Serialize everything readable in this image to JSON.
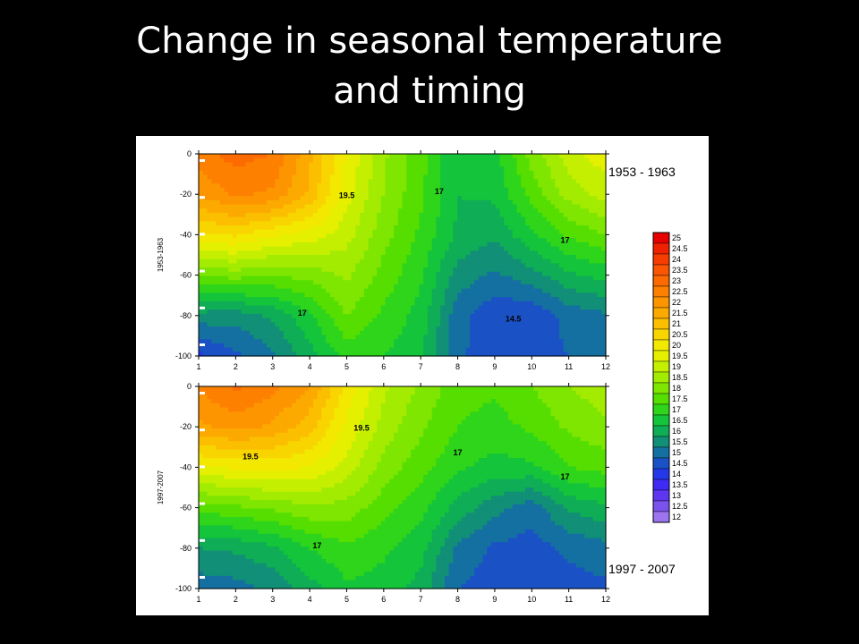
{
  "slide": {
    "title_line1": "Change in seasonal temperature",
    "title_line2": "and timing"
  },
  "chart_data": [
    {
      "type": "heatmap",
      "subtype": "filled-contour",
      "period_label": "1953 - 1963",
      "ylabel": "1953-1963",
      "xlabel": "",
      "x": [
        1,
        2,
        3,
        4,
        5,
        6,
        7,
        8,
        9,
        10,
        11,
        12
      ],
      "y": [
        0,
        -20,
        -40,
        -60,
        -80,
        -100
      ],
      "x_ticks": [
        "1",
        "2",
        "3",
        "4",
        "5",
        "6",
        "7",
        "8",
        "9",
        "10",
        "11",
        "12"
      ],
      "y_ticks": [
        "0",
        "-20",
        "-40",
        "-60",
        "-80",
        "-100"
      ],
      "xlim": [
        1,
        12
      ],
      "ylim": [
        -100,
        0
      ],
      "grid": false,
      "contour_labels": [
        {
          "text": "19.5",
          "x": 5.0,
          "y": -22
        },
        {
          "text": "17",
          "x": 7.5,
          "y": -20
        },
        {
          "text": "17",
          "x": 10.9,
          "y": -44
        },
        {
          "text": "17",
          "x": 3.8,
          "y": -80
        },
        {
          "text": "14.5",
          "x": 9.5,
          "y": -83
        }
      ],
      "z": [
        [
          22.8,
          23.2,
          23.0,
          21.6,
          20.0,
          18.6,
          17.7,
          16.5,
          16.8,
          18.2,
          19.3,
          19.8
        ],
        [
          22.1,
          22.6,
          22.4,
          21.4,
          19.7,
          18.5,
          17.6,
          16.5,
          16.6,
          17.7,
          18.7,
          19.2
        ],
        [
          20.4,
          20.6,
          20.1,
          19.8,
          19.2,
          18.2,
          17.4,
          16.4,
          16.1,
          16.9,
          17.6,
          18.0
        ],
        [
          18.1,
          18.2,
          18.0,
          18.2,
          18.6,
          17.8,
          17.1,
          15.8,
          15.4,
          15.8,
          16.4,
          16.7
        ],
        [
          15.8,
          15.7,
          16.1,
          16.9,
          18.0,
          17.4,
          16.8,
          15.2,
          14.6,
          14.6,
          15.2,
          15.4
        ],
        [
          14.4,
          14.9,
          15.4,
          16.3,
          17.2,
          17.0,
          16.6,
          15.1,
          14.7,
          14.7,
          15.0,
          15.2
        ]
      ]
    },
    {
      "type": "heatmap",
      "subtype": "filled-contour",
      "period_label": "1997 - 2007",
      "ylabel": "1997-2007",
      "xlabel": "",
      "x": [
        1,
        2,
        3,
        4,
        5,
        6,
        7,
        8,
        9,
        10,
        11,
        12
      ],
      "y": [
        0,
        -20,
        -40,
        -60,
        -80,
        -100
      ],
      "x_ticks": [
        "1",
        "2",
        "3",
        "4",
        "5",
        "6",
        "7",
        "8",
        "9",
        "10",
        "11",
        "12"
      ],
      "y_ticks": [
        "0",
        "-20",
        "-40",
        "-60",
        "-80",
        "-100"
      ],
      "xlim": [
        1,
        12
      ],
      "ylim": [
        -100,
        0
      ],
      "grid": false,
      "contour_labels": [
        {
          "text": "19.5",
          "x": 5.4,
          "y": -22
        },
        {
          "text": "19.5",
          "x": 2.4,
          "y": -36
        },
        {
          "text": "17",
          "x": 8.0,
          "y": -34
        },
        {
          "text": "17",
          "x": 10.9,
          "y": -46
        },
        {
          "text": "17",
          "x": 4.2,
          "y": -80
        }
      ],
      "z": [
        [
          22.6,
          23.1,
          22.7,
          22.0,
          20.3,
          19.1,
          18.4,
          17.7,
          17.6,
          18.0,
          18.5,
          18.8
        ],
        [
          21.9,
          22.2,
          21.9,
          21.2,
          19.9,
          18.8,
          18.1,
          17.5,
          17.3,
          17.6,
          18.1,
          18.4
        ],
        [
          19.9,
          20.1,
          20.2,
          20.0,
          19.3,
          18.3,
          17.7,
          17.1,
          16.8,
          16.9,
          17.5,
          17.7
        ],
        [
          17.7,
          17.9,
          18.1,
          18.4,
          18.3,
          17.7,
          17.2,
          16.3,
          15.7,
          15.2,
          16.1,
          16.4
        ],
        [
          16.0,
          16.1,
          16.4,
          17.0,
          17.4,
          17.1,
          16.7,
          15.4,
          14.9,
          14.8,
          15.1,
          15.3
        ],
        [
          15.2,
          15.3,
          15.6,
          16.3,
          16.9,
          16.8,
          16.3,
          15.0,
          14.7,
          14.6,
          14.8,
          14.9
        ]
      ]
    }
  ],
  "colorbar": {
    "levels": [
      "25",
      "24.5",
      "24",
      "23.5",
      "23",
      "22.5",
      "22",
      "21.5",
      "21",
      "20.5",
      "20",
      "19.5",
      "19",
      "18.5",
      "18",
      "17.5",
      "17",
      "16.5",
      "16",
      "15.5",
      "15",
      "14.5",
      "14",
      "13.5",
      "13",
      "12.5",
      "12"
    ],
    "colors": [
      "#e60000",
      "#ef2200",
      "#f53d00",
      "#fa5500",
      "#fc6a00",
      "#fd8000",
      "#fd9500",
      "#fca900",
      "#fbbf00",
      "#f9d500",
      "#f3e800",
      "#e5f000",
      "#c5ef00",
      "#a3eb00",
      "#7ee600",
      "#56de00",
      "#2ed51a",
      "#14c43a",
      "#0fad56",
      "#118f77",
      "#1470a0",
      "#1a52c6",
      "#2438e8",
      "#3f2bf3",
      "#5f36ef",
      "#7b52ec",
      "#9b74ee"
    ]
  }
}
